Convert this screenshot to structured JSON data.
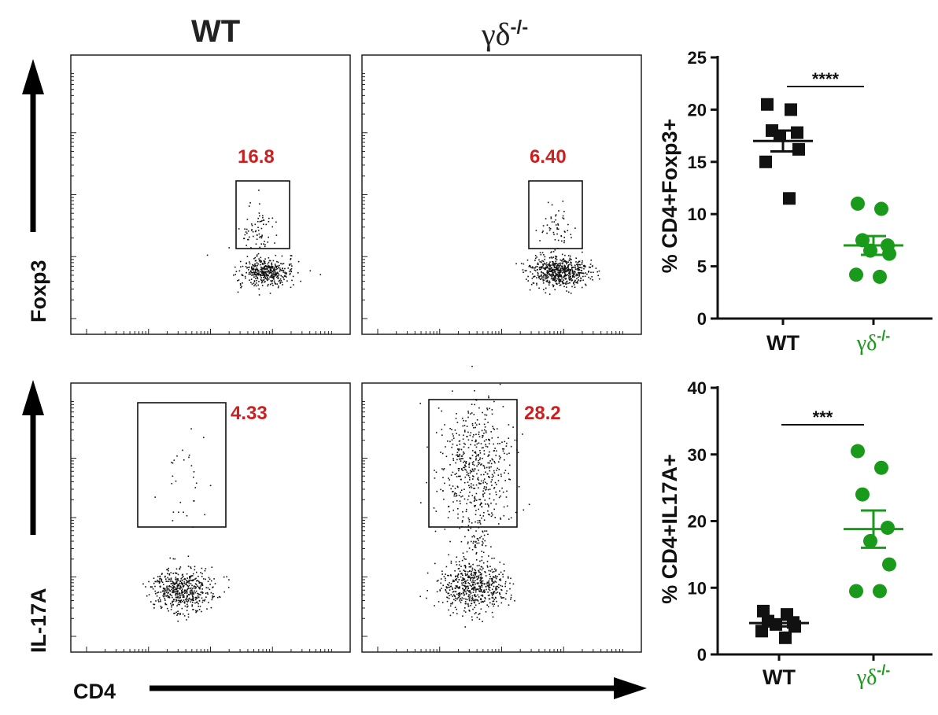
{
  "column_headers": {
    "wt": "WT",
    "ko_base": "γδ",
    "ko_sup": "-/-"
  },
  "flow_axes": {
    "x_label": "CD4",
    "y_label_top": "Foxp3",
    "y_label_bottom": "IL-17A"
  },
  "flow_panels": [
    {
      "id": "foxp3-wt",
      "row": 0,
      "col": 0,
      "gate_percent": "16.8"
    },
    {
      "id": "foxp3-ko",
      "row": 0,
      "col": 1,
      "gate_percent": "6.40"
    },
    {
      "id": "il17a-wt",
      "row": 1,
      "col": 0,
      "gate_percent": "4.33"
    },
    {
      "id": "il17a-ko",
      "row": 1,
      "col": 1,
      "gate_percent": "28.2"
    }
  ],
  "colors": {
    "wt": "#111111",
    "ko": "#1a9a1a",
    "gate_text": "#cc1f1f"
  },
  "chart_data": [
    {
      "type": "scatter",
      "ylabel": "% CD4+Foxp3+",
      "ylim": [
        0,
        25
      ],
      "yticks": [
        "0",
        "5",
        "10",
        "15",
        "20",
        "25"
      ],
      "categories": [
        "WT",
        "γδ-/-"
      ],
      "category_display": {
        "wt": "WT",
        "ko_base": "γδ",
        "ko_sup": "-/-"
      },
      "significance": "****",
      "series": [
        {
          "group": "WT",
          "marker": "square",
          "color": "#111111",
          "values": [
            20.5,
            20.0,
            18.0,
            17.8,
            17.5,
            16.2,
            15.0,
            11.5
          ],
          "mean": 17.0,
          "sem": 1.0
        },
        {
          "group": "γδ-/-",
          "marker": "circle",
          "color": "#1a9a1a",
          "values": [
            11.0,
            10.5,
            7.5,
            7.0,
            6.5,
            6.2,
            4.2,
            4.0
          ],
          "mean": 7.0,
          "sem": 0.9
        }
      ]
    },
    {
      "type": "scatter",
      "ylabel": "% CD4+IL17A+",
      "ylim": [
        0,
        40
      ],
      "yticks": [
        "0",
        "10",
        "20",
        "30",
        "40"
      ],
      "categories": [
        "WT",
        "γδ-/-"
      ],
      "category_display": {
        "wt": "WT",
        "ko_base": "γδ",
        "ko_sup": "-/-"
      },
      "significance": "***",
      "series": [
        {
          "group": "WT",
          "marker": "square",
          "color": "#111111",
          "values": [
            6.5,
            6.0,
            5.0,
            4.8,
            4.5,
            4.2,
            3.5,
            2.5
          ],
          "mean": 4.7,
          "sem": 0.5
        },
        {
          "group": "γδ-/-",
          "marker": "circle",
          "color": "#1a9a1a",
          "values": [
            30.5,
            28.0,
            24.0,
            19.0,
            17.0,
            13.5,
            9.5,
            9.5
          ],
          "mean": 18.8,
          "sem": 2.8
        }
      ]
    }
  ]
}
